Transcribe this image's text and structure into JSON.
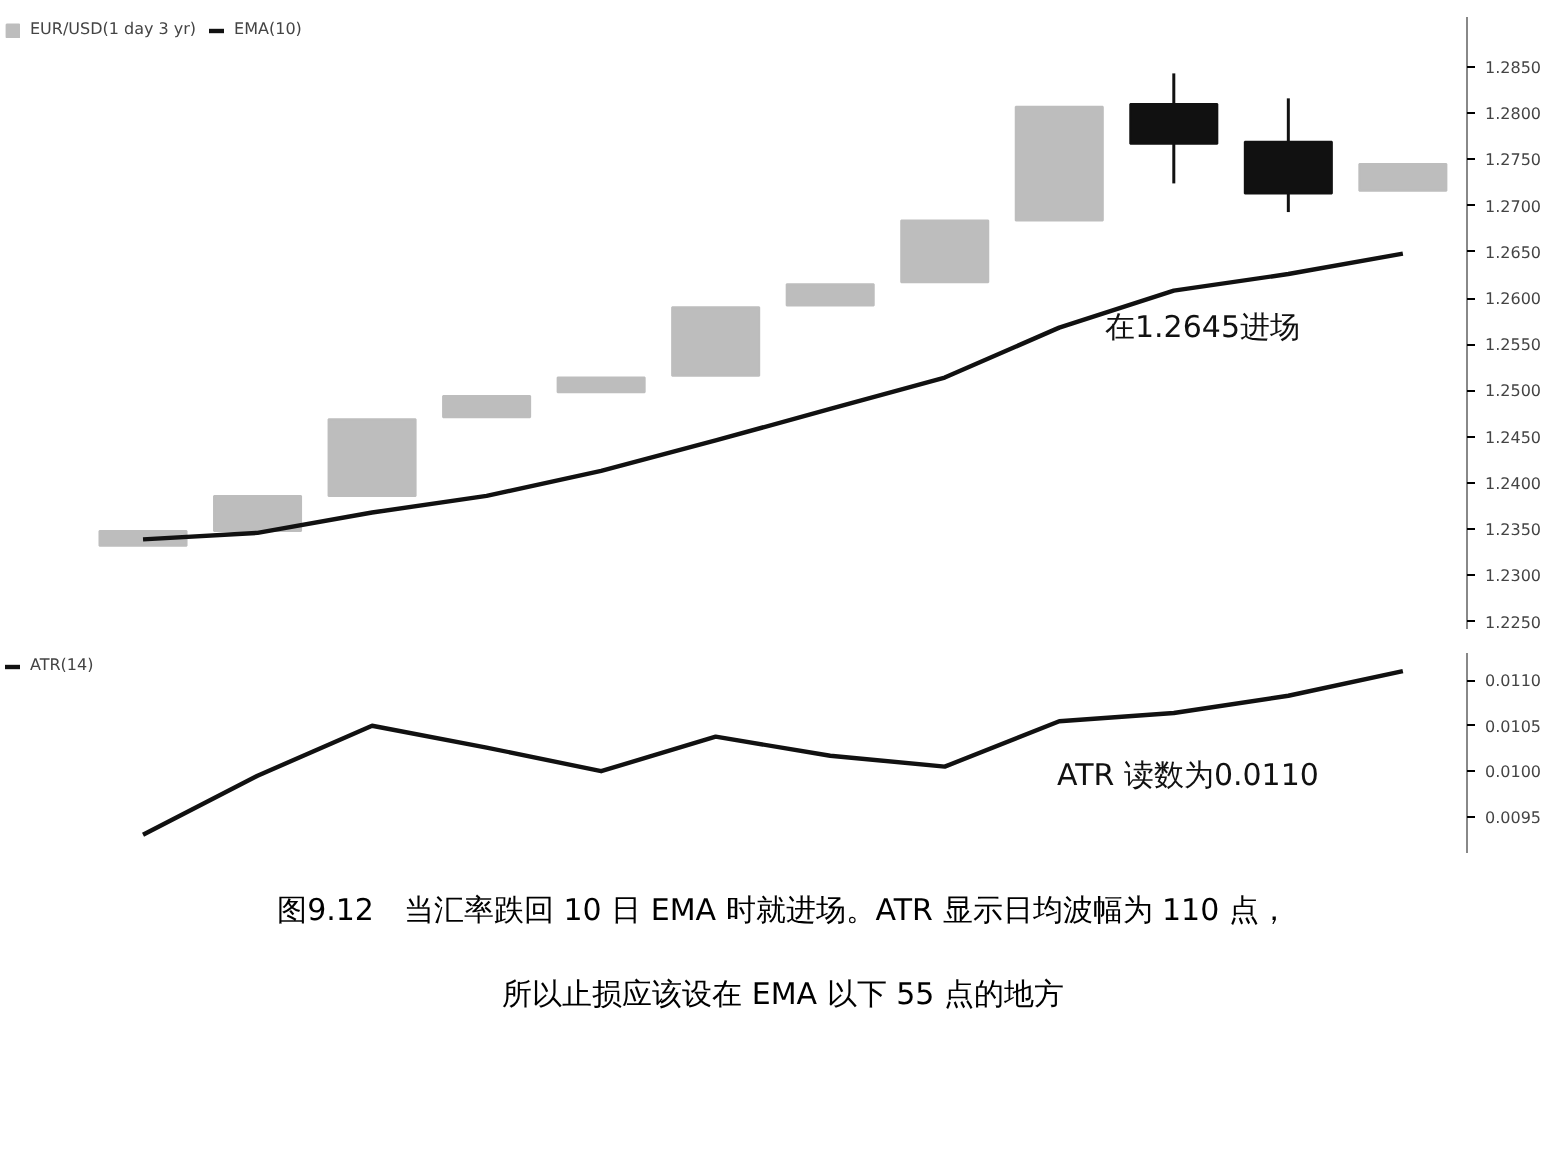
{
  "chart_data": [
    {
      "type": "candlestick",
      "categories": [
        null,
        null,
        null,
        null,
        null,
        null,
        null,
        null,
        null,
        null,
        null,
        null
      ],
      "series": [
        {
          "name": "EUR/USD(1 day 3 yr)",
          "type": "candlestick",
          "colors": [
            "#bdbdbd",
            "#bdbdbd",
            "#bdbdbd",
            "#bdbdbd",
            "#bdbdbd",
            "#bdbdbd",
            "#bdbdbd",
            "#bdbdbd",
            "#bdbdbd",
            "#111111",
            "#111111",
            "#bdbdbd"
          ],
          "ohlc": [
            [
              1.2332,
              1.2348,
              1.2332,
              1.2348
            ],
            [
              1.2348,
              1.2386,
              1.2348,
              1.2386
            ],
            [
              1.2386,
              1.2469,
              1.2386,
              1.2469
            ],
            [
              1.2471,
              1.2494,
              1.2471,
              1.2494
            ],
            [
              1.2498,
              1.2514,
              1.2498,
              1.2514
            ],
            [
              1.2516,
              1.259,
              1.2516,
              1.259
            ],
            [
              1.2592,
              1.2615,
              1.2592,
              1.2615
            ],
            [
              1.2617,
              1.2684,
              1.2617,
              1.2684
            ],
            [
              1.2684,
              1.2807,
              1.2684,
              1.2807
            ],
            [
              1.281,
              1.2843,
              1.2724,
              1.2767
            ],
            [
              1.2769,
              1.2816,
              1.2693,
              1.2713
            ],
            [
              1.2716,
              1.2745,
              1.2716,
              1.2745
            ]
          ]
        },
        {
          "name": "EMA(10)",
          "type": "line",
          "color": "#111111",
          "values": [
            1.2339,
            1.2346,
            1.2368,
            1.2386,
            1.2413,
            1.2446,
            1.248,
            1.2514,
            1.2568,
            1.2608,
            1.2626,
            1.2648
          ]
        }
      ],
      "ylim": [
        1.2242,
        1.2904
      ],
      "yticks": [
        {
          "value": 1.225,
          "label": "1.2250"
        },
        {
          "value": 1.23,
          "label": "1.2300"
        },
        {
          "value": 1.235,
          "label": "1.2350"
        },
        {
          "value": 1.24,
          "label": "1.2400"
        },
        {
          "value": 1.245,
          "label": "1.2450"
        },
        {
          "value": 1.25,
          "label": "1.2500"
        },
        {
          "value": 1.255,
          "label": "1.2550"
        },
        {
          "value": 1.26,
          "label": "1.2600"
        },
        {
          "value": 1.265,
          "label": "1.2650"
        },
        {
          "value": 1.27,
          "label": "1.2700"
        },
        {
          "value": 1.275,
          "label": "1.2750"
        },
        {
          "value": 1.28,
          "label": "1.2800"
        },
        {
          "value": 1.285,
          "label": "1.2850"
        }
      ],
      "annotations": [
        "在1.2645进场"
      ],
      "legend": "top left",
      "grid": false,
      "tick_labels": "y"
    },
    {
      "type": "line",
      "categories": [
        null,
        null,
        null,
        null,
        null,
        null,
        null,
        null,
        null,
        null,
        null,
        null
      ],
      "series": [
        {
          "name": "ATR(14)",
          "color": "#111111",
          "values": [
            0.0093,
            0.00995,
            0.0105,
            0.01026,
            0.01,
            0.01038,
            0.01017,
            0.01005,
            0.01055,
            0.01064,
            0.01083,
            0.0111
          ]
        }
      ],
      "ylim": [
        0.0091,
        0.0113
      ],
      "yticks": [
        {
          "value": 0.0095,
          "label": "0.0095"
        },
        {
          "value": 0.01,
          "label": "0.0100"
        },
        {
          "value": 0.0105,
          "label": "0.0105"
        },
        {
          "value": 0.011,
          "label": "0.0110"
        }
      ],
      "annotations": [
        "ATR 读数为0.0110",
        "图9.12　当汇率跌回 10 日 EMA 时就进场。ATR 显示日均波幅为 110 点，",
        "所以止损应该设在 EMA 以下 55 点的地方"
      ],
      "legend": "top left",
      "grid": false,
      "tick_labels": "y"
    }
  ]
}
